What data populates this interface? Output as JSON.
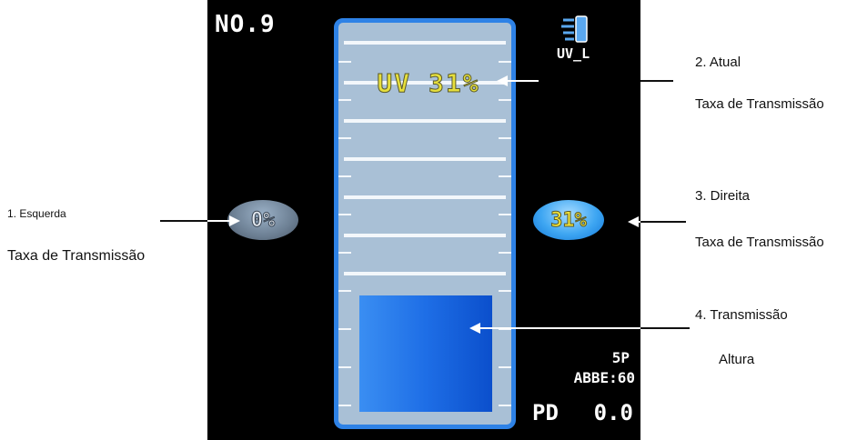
{
  "device": {
    "screen_number": "NO.9",
    "uv_mode": "UV_L",
    "uv_reading": "UV 31%",
    "left_rate": "0%",
    "right_rate": "31%",
    "lens_type": "5P",
    "abbe": "ABBE:60",
    "pd_label": "PD",
    "pd_value": "0.0",
    "transmission_level": 0.31,
    "colors": {
      "frame": "#2e82e6",
      "gauge_bg": "#a9c0d6",
      "fill": "#1e6ee6",
      "readout": "#e6df3c"
    },
    "icons": [
      "uv-lamp-icon"
    ]
  },
  "annotations": {
    "left_title": "1. Esquerda",
    "left_subtitle": "Taxa de Transmissão",
    "current_title": "2. Atual",
    "current_subtitle": "Taxa de Transmissão",
    "right_title": "3. Direita",
    "right_subtitle": "Taxa de Transmissão",
    "height_title": "4. Transmissão",
    "height_subtitle": "Altura"
  }
}
